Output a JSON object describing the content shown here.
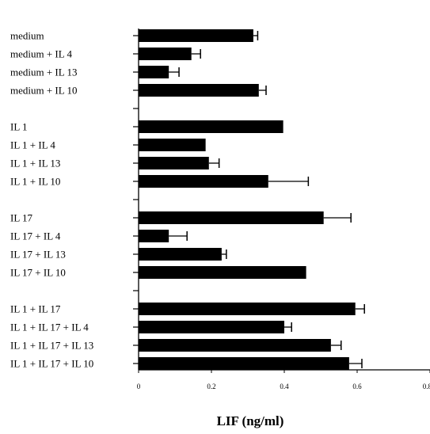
{
  "chart_data": {
    "type": "bar",
    "orientation": "horizontal",
    "xlabel": "LIF (ng/ml)",
    "xlim": [
      0,
      0.8
    ],
    "x_ticks": [
      "0",
      "0.2",
      "0.4",
      "0.6",
      "0.8"
    ],
    "grid": false,
    "groups": [
      {
        "rows": [
          {
            "label": "medium",
            "value": 0.315,
            "error": 0.012
          },
          {
            "label": "medium + IL 4",
            "value": 0.145,
            "error": 0.025
          },
          {
            "label": "medium + IL 13",
            "value": 0.083,
            "error": 0.028
          },
          {
            "label": "medium + IL 10",
            "value": 0.33,
            "error": 0.02
          }
        ]
      },
      {
        "rows": [
          {
            "label": "IL 1",
            "value": 0.397,
            "error": null
          },
          {
            "label": "IL 1 + IL 4",
            "value": 0.184,
            "error": null
          },
          {
            "label": "IL 1 + IL 13",
            "value": 0.193,
            "error": 0.028
          },
          {
            "label": "IL 1 + IL 10",
            "value": 0.356,
            "error": 0.11
          }
        ]
      },
      {
        "rows": [
          {
            "label": "IL 17",
            "value": 0.508,
            "error": 0.075
          },
          {
            "label": "IL 17 + IL 4",
            "value": 0.083,
            "error": 0.05
          },
          {
            "label": "IL 17 + IL 13",
            "value": 0.228,
            "error": 0.013
          },
          {
            "label": "IL 17 + IL 10",
            "value": 0.46,
            "error": null
          }
        ]
      },
      {
        "rows": [
          {
            "label": "IL 1 + IL 17",
            "value": 0.595,
            "error": 0.025
          },
          {
            "label": "IL 1 + IL 17 + IL 4",
            "value": 0.4,
            "error": 0.02
          },
          {
            "label": "IL 1 + IL 17 + IL 13",
            "value": 0.528,
            "error": 0.028
          },
          {
            "label": "IL 1 + IL 17 + IL 10",
            "value": 0.578,
            "error": 0.035
          }
        ]
      }
    ]
  }
}
